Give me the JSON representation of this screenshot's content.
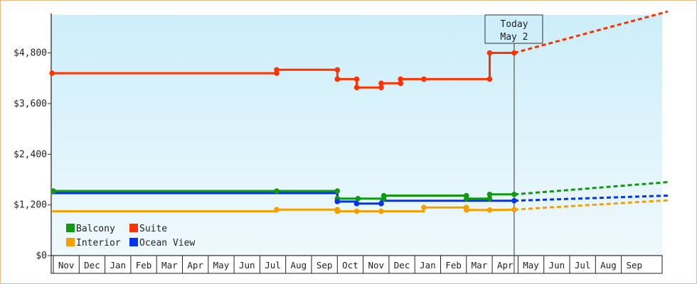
{
  "chart_data": {
    "type": "line",
    "y_ticks": [
      "$0",
      "$1,200",
      "$2,400",
      "$3,600",
      "$4,800"
    ],
    "ylim": [
      0,
      5700
    ],
    "x_ticks": [
      "Nov",
      "Dec",
      "Jan",
      "Feb",
      "Mar",
      "Apr",
      "May",
      "Jun",
      "Jul",
      "Aug",
      "Sep",
      "Oct",
      "Nov",
      "Dec",
      "Jan",
      "Feb",
      "Mar",
      "Apr",
      "May",
      "Jun",
      "Jul",
      "Aug",
      "Sep"
    ],
    "today_label": [
      "Today",
      "May 2"
    ],
    "today_x": 17.85,
    "x_end": 23.8,
    "grid": false,
    "legend_placement": "bottom-left",
    "series": [
      {
        "name": "Balcony",
        "color": "#119911",
        "points": [
          [
            -0.05,
            1530
          ],
          [
            8.65,
            1530
          ],
          [
            11.0,
            1530
          ],
          [
            11.0,
            1350
          ],
          [
            11.8,
            1350
          ],
          [
            12.8,
            1350
          ],
          [
            12.8,
            1420
          ],
          [
            16.0,
            1420
          ],
          [
            16.0,
            1350
          ],
          [
            16.9,
            1350
          ],
          [
            16.9,
            1450
          ],
          [
            17.85,
            1450
          ]
        ],
        "forecast": [
          [
            17.85,
            1450
          ],
          [
            23.8,
            1740
          ]
        ]
      },
      {
        "name": "Suite",
        "color": "#ff3300",
        "points": [
          [
            -0.05,
            4320
          ],
          [
            8.65,
            4320
          ],
          [
            8.65,
            4400
          ],
          [
            11.0,
            4400
          ],
          [
            11.0,
            4180
          ],
          [
            11.75,
            4180
          ],
          [
            11.75,
            3980
          ],
          [
            12.7,
            3980
          ],
          [
            12.7,
            4080
          ],
          [
            13.45,
            4080
          ],
          [
            13.45,
            4180
          ],
          [
            14.35,
            4180
          ],
          [
            16.9,
            4180
          ],
          [
            16.9,
            4800
          ],
          [
            17.85,
            4800
          ]
        ],
        "forecast": [
          [
            17.85,
            4800
          ],
          [
            23.8,
            5780
          ]
        ]
      },
      {
        "name": "Interior",
        "color": "#f5a000",
        "points": [
          [
            -0.05,
            1050
          ],
          [
            8.65,
            1050
          ],
          [
            8.65,
            1090
          ],
          [
            11.0,
            1090
          ],
          [
            11.0,
            1050
          ],
          [
            11.75,
            1050
          ],
          [
            12.7,
            1050
          ],
          [
            14.35,
            1050
          ],
          [
            14.35,
            1140
          ],
          [
            16.0,
            1140
          ],
          [
            16.0,
            1080
          ],
          [
            16.9,
            1080
          ],
          [
            17.85,
            1090
          ]
        ],
        "forecast": [
          [
            17.85,
            1090
          ],
          [
            23.8,
            1310
          ]
        ]
      },
      {
        "name": "Ocean View",
        "color": "#0033ee",
        "points": [
          [
            -0.05,
            1480
          ],
          [
            8.65,
            1480
          ],
          [
            11.0,
            1480
          ],
          [
            11.0,
            1280
          ],
          [
            11.75,
            1280
          ],
          [
            11.75,
            1230
          ],
          [
            12.7,
            1230
          ],
          [
            12.7,
            1300
          ],
          [
            16.0,
            1300
          ],
          [
            16.9,
            1300
          ],
          [
            17.85,
            1300
          ]
        ],
        "forecast": [
          [
            17.85,
            1300
          ],
          [
            23.8,
            1420
          ]
        ]
      }
    ],
    "markers": {
      "Balcony": [
        [
          0,
          1530
        ],
        [
          8.65,
          1530
        ],
        [
          11.0,
          1530
        ],
        [
          11.0,
          1350
        ],
        [
          11.8,
          1350
        ],
        [
          12.8,
          1350
        ],
        [
          12.8,
          1420
        ],
        [
          16.0,
          1420
        ],
        [
          16.0,
          1350
        ],
        [
          16.9,
          1350
        ],
        [
          16.9,
          1450
        ],
        [
          17.85,
          1450
        ]
      ],
      "Suite": [
        [
          -0.05,
          4320
        ],
        [
          8.65,
          4320
        ],
        [
          8.65,
          4400
        ],
        [
          11.0,
          4400
        ],
        [
          11.0,
          4180
        ],
        [
          11.75,
          4180
        ],
        [
          11.75,
          3980
        ],
        [
          12.7,
          3980
        ],
        [
          12.7,
          4080
        ],
        [
          13.45,
          4080
        ],
        [
          13.45,
          4180
        ],
        [
          14.35,
          4180
        ],
        [
          16.9,
          4180
        ],
        [
          16.9,
          4800
        ],
        [
          17.85,
          4800
        ]
      ],
      "Interior": [
        [
          8.65,
          1090
        ],
        [
          11.0,
          1090
        ],
        [
          11.0,
          1050
        ],
        [
          11.75,
          1050
        ],
        [
          12.7,
          1050
        ],
        [
          14.35,
          1140
        ],
        [
          16.0,
          1140
        ],
        [
          16.0,
          1080
        ],
        [
          16.9,
          1080
        ],
        [
          17.85,
          1090
        ]
      ],
      "Ocean View": [
        [
          11.0,
          1280
        ],
        [
          11.75,
          1230
        ],
        [
          12.7,
          1230
        ],
        [
          17.85,
          1300
        ]
      ]
    }
  }
}
